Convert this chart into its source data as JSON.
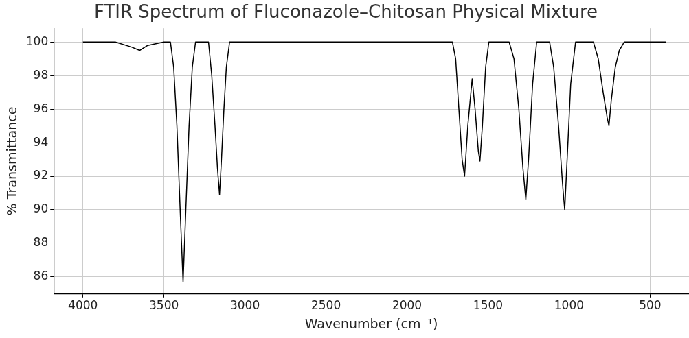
{
  "chart_data": {
    "type": "line",
    "title": "FTIR Spectrum of Fluconazole–Chitosan Physical Mixture",
    "xlabel": "Wavenumber (cm⁻¹)",
    "ylabel": "% Transmittance",
    "series": [
      {
        "color": "#000000",
        "x": [
          4000,
          3800,
          3700,
          3650,
          3600,
          3500,
          3460,
          3440,
          3420,
          3400,
          3382,
          3365,
          3345,
          3325,
          3305,
          3260,
          3225,
          3205,
          3185,
          3170,
          3157,
          3145,
          3130,
          3115,
          3095,
          3000,
          2500,
          2000,
          1720,
          1700,
          1680,
          1660,
          1645,
          1625,
          1598,
          1580,
          1560,
          1550,
          1535,
          1515,
          1495,
          1430,
          1370,
          1340,
          1310,
          1285,
          1267,
          1250,
          1225,
          1200,
          1160,
          1120,
          1095,
          1065,
          1040,
          1027,
          1012,
          990,
          960,
          900,
          850,
          820,
          790,
          765,
          754,
          740,
          715,
          690,
          660,
          500,
          400
        ],
        "values": [
          100,
          100,
          99.7,
          99.5,
          99.8,
          100,
          100,
          98.5,
          95,
          90,
          85.7,
          90,
          95,
          98.5,
          100,
          100,
          100,
          98,
          95,
          92.5,
          90.9,
          93,
          96,
          98.5,
          100,
          100,
          100,
          100,
          100,
          99,
          96,
          93,
          92,
          95,
          97.8,
          96,
          93.5,
          92.9,
          95,
          98.5,
          100,
          100,
          100,
          99,
          96,
          92.5,
          90.6,
          93,
          97.5,
          100,
          100,
          100,
          98.5,
          95,
          91.5,
          90,
          93,
          97.5,
          100,
          100,
          100,
          99,
          97,
          95.5,
          95,
          96.5,
          98.5,
          99.5,
          100,
          100,
          100
        ]
      }
    ],
    "xlim": [
      4180,
      260
    ],
    "xticks": [
      4000,
      3500,
      3000,
      2500,
      2000,
      1500,
      1000,
      500
    ],
    "ylim": [
      84.98,
      100.82
    ],
    "yticks": [
      86,
      88,
      90,
      92,
      94,
      96,
      98,
      100
    ],
    "grid": true,
    "line_style": "solid",
    "marker": "none"
  }
}
